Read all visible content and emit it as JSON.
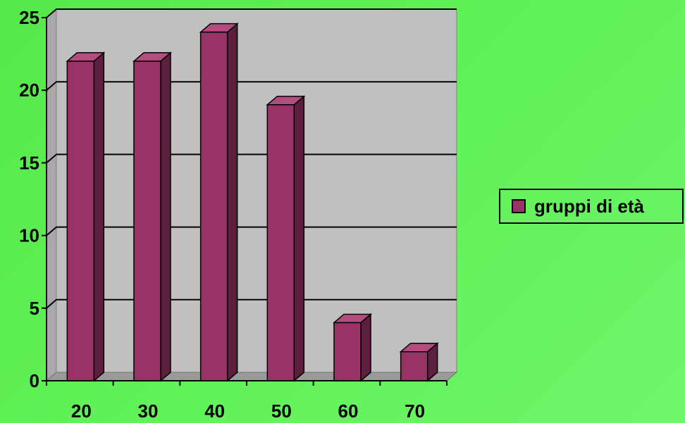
{
  "chart_data": {
    "type": "bar",
    "categories": [
      "20",
      "30",
      "40",
      "50",
      "60",
      "70"
    ],
    "series": [
      {
        "name": "gruppi di età",
        "values": [
          22,
          22,
          24,
          19,
          4,
          2
        ]
      }
    ],
    "ylim": [
      0,
      25
    ],
    "yticks": [
      "0",
      "5",
      "10",
      "15",
      "20",
      "25"
    ],
    "grid": true,
    "legend": "right",
    "colors": {
      "bar_front": "#993366",
      "bar_side": "#5c1f3d",
      "bar_top": "#b34d80",
      "plot_bg": "#c0c0c0"
    }
  }
}
